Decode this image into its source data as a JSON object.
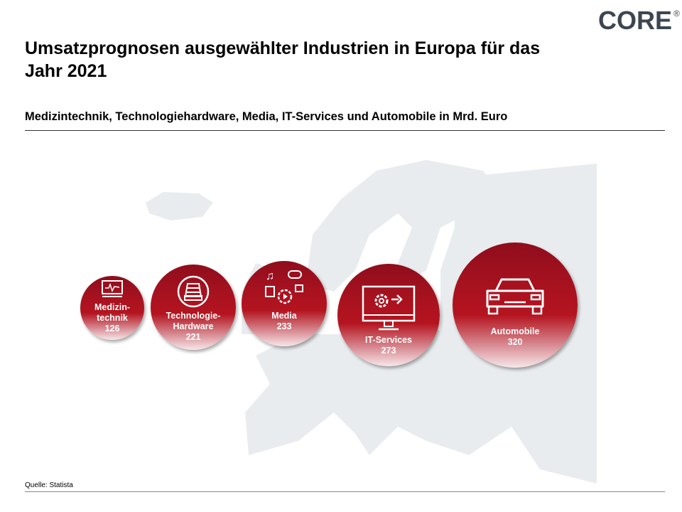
{
  "logo": {
    "text": "CORE",
    "mark": "®"
  },
  "header": {
    "title": "Umsatzprognosen ausgewählter Industrien in Europa für das Jahr 2021",
    "subtitle": "Medizintechnik, Technologiehardware, Media, IT-Services und Automobile in Mrd. Euro"
  },
  "chart_data": {
    "type": "bubble",
    "title": "Umsatzprognosen ausgewählter Industrien in Europa für das Jahr 2021",
    "subtitle": "Medizintechnik, Technologiehardware, Media, IT-Services und Automobile in Mrd. Euro",
    "unit": "Mrd. Euro",
    "categories": [
      "Medizintechnik",
      "Technologie-Hardware",
      "Media",
      "IT-Services",
      "Automobile"
    ],
    "labels": [
      [
        "Medizin-",
        "technik"
      ],
      [
        "Technologie-",
        "Hardware"
      ],
      [
        "Media"
      ],
      [
        "IT-Services"
      ],
      [
        "Automobile"
      ]
    ],
    "values": [
      126,
      221,
      233,
      273,
      320
    ],
    "icons": [
      "medical-monitor-icon",
      "hard-drive-icon",
      "media-cycle-icon",
      "computer-settings-icon",
      "car-icon"
    ],
    "bubble_color": "#a8121f",
    "background": "europe-map"
  },
  "footer": {
    "source": "Quelle: Statista"
  }
}
